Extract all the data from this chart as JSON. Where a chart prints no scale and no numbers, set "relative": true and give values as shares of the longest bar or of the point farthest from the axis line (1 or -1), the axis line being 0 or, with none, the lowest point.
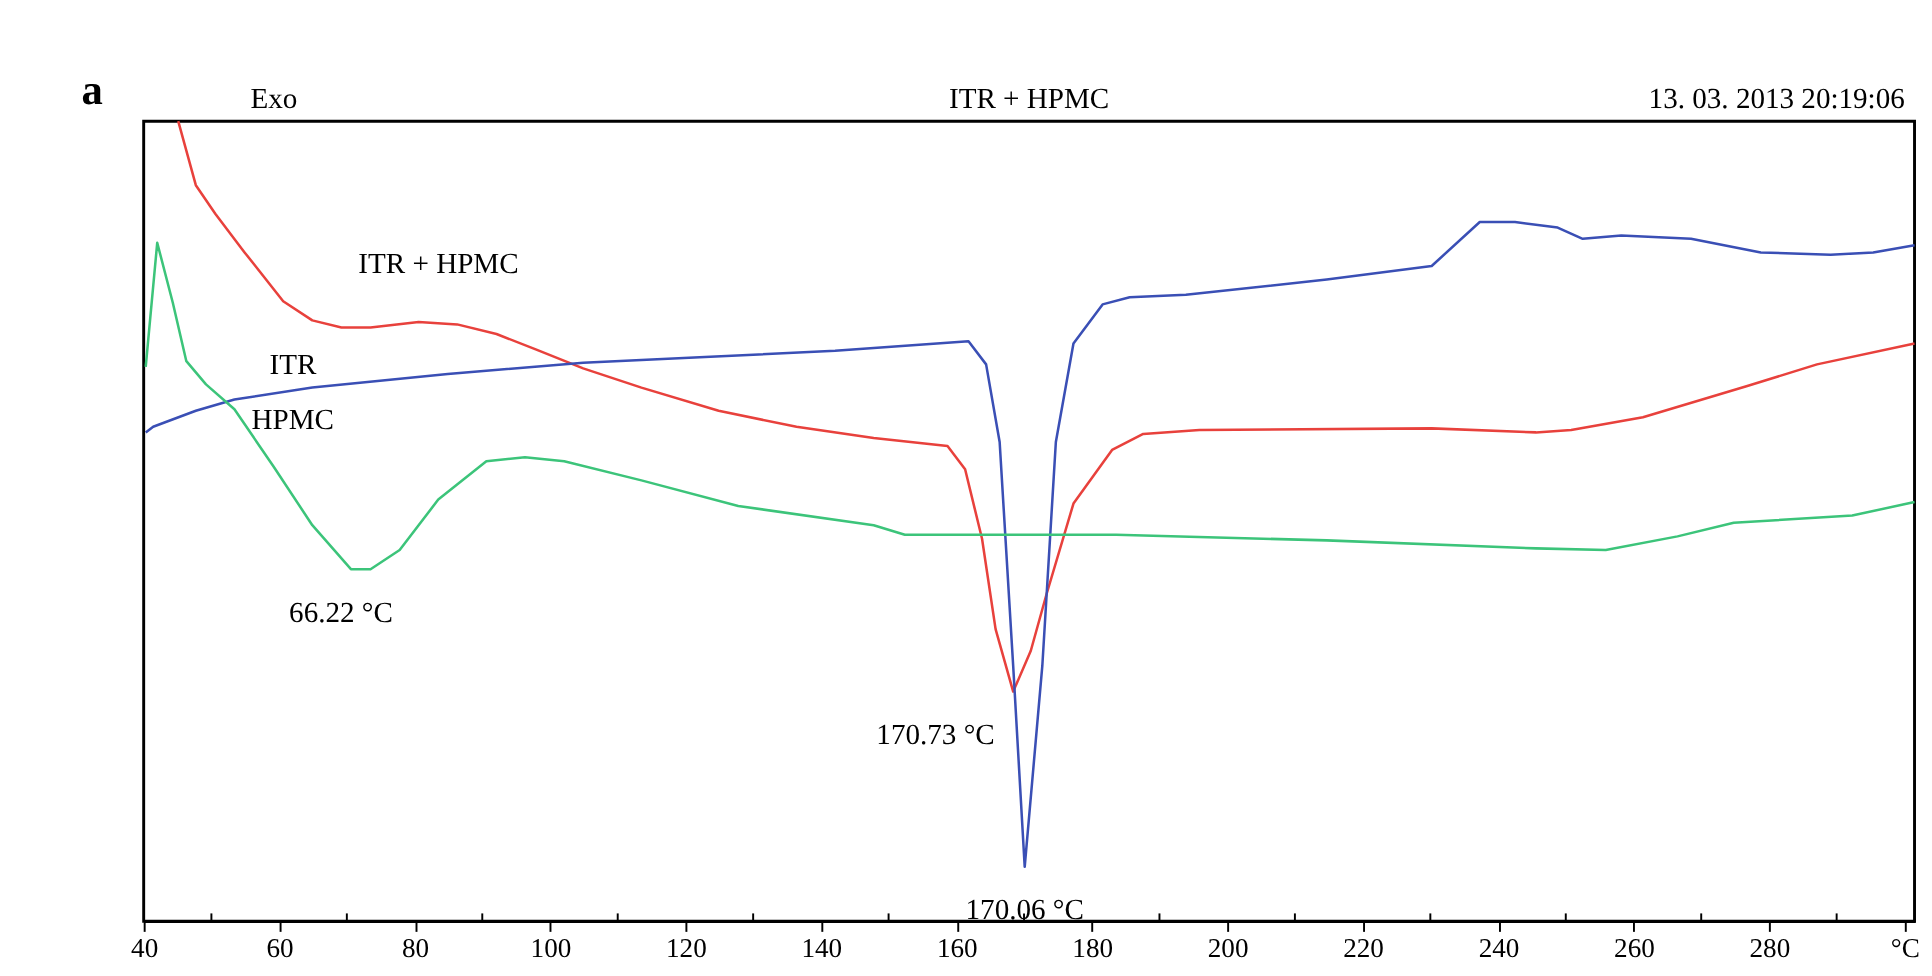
{
  "chart_data": {
    "type": "line",
    "title": "ITR + HPMC",
    "relative": true,
    "grid": false,
    "marker": "none",
    "line_style": "solid",
    "xlim": [
      40,
      301.5
    ],
    "xticks": [
      40,
      {
        "value": 50,
        "label": null
      },
      60,
      {
        "value": 70,
        "label": null
      },
      80,
      {
        "value": 90,
        "label": null
      },
      100,
      {
        "value": 110,
        "label": null
      },
      120,
      {
        "value": 130,
        "label": null
      },
      140,
      {
        "value": 150,
        "label": null
      },
      160,
      {
        "value": 170,
        "label": null
      },
      180,
      {
        "value": 190,
        "label": null
      },
      200,
      {
        "value": 210,
        "label": null
      },
      220,
      {
        "value": 230,
        "label": null
      },
      240,
      {
        "value": 250,
        "label": null
      },
      260,
      {
        "value": 270,
        "label": null
      },
      280,
      {
        "value": 290,
        "label": null
      },
      {
        "value": 300,
        "label": "°C"
      }
    ],
    "tick_labels": "x",
    "series": [
      {
        "name": "ITR + HPMC",
        "color": "#e8413c",
        "x": [
          45.1,
          47.7,
          50.6,
          54.9,
          60.6,
          64.9,
          69.2,
          73.5,
          80.6,
          86.3,
          92.1,
          97.8,
          104.9,
          113.5,
          124.9,
          136.4,
          147.8,
          158.7,
          161.3,
          163.8,
          165.8,
          168.4,
          171.0,
          173.3,
          177.3,
          183.0,
          187.6,
          195.9,
          230.2,
          245.6,
          250.8,
          261.4,
          276.8,
          287.1,
          301.5
        ],
        "values": [
          1.0,
          0.92,
          0.884,
          0.836,
          0.775,
          0.751,
          0.742,
          0.742,
          0.749,
          0.746,
          0.734,
          0.715,
          0.691,
          0.667,
          0.638,
          0.618,
          0.604,
          0.594,
          0.565,
          0.478,
          0.365,
          0.287,
          0.338,
          0.408,
          0.522,
          0.589,
          0.609,
          0.614,
          0.616,
          0.611,
          0.614,
          0.63,
          0.669,
          0.696,
          0.722
        ]
      },
      {
        "name": "ITR",
        "color": "#3a4fb5",
        "x": [
          40.3,
          41.4,
          47.7,
          53.4,
          64.9,
          84.9,
          104.9,
          122.1,
          142.1,
          161.8,
          164.4,
          166.4,
          168.4,
          170.1,
          172.7,
          174.7,
          177.3,
          181.6,
          185.6,
          193.9,
          214.7,
          230.2,
          237.3,
          242.5,
          248.8,
          252.5,
          258.2,
          268.5,
          278.8,
          289.1,
          295.4,
          301.5
        ],
        "values": [
          0.611,
          0.618,
          0.638,
          0.652,
          0.667,
          0.684,
          0.698,
          0.705,
          0.713,
          0.725,
          0.696,
          0.599,
          0.319,
          0.068,
          0.319,
          0.599,
          0.722,
          0.771,
          0.78,
          0.783,
          0.802,
          0.819,
          0.874,
          0.874,
          0.867,
          0.853,
          0.857,
          0.853,
          0.836,
          0.833,
          0.836,
          0.845
        ]
      },
      {
        "name": "HPMC",
        "color": "#3cc47a",
        "x": [
          40.3,
          42.0,
          44.3,
          46.3,
          49.2,
          53.4,
          59.2,
          64.9,
          70.6,
          73.5,
          77.8,
          83.5,
          90.6,
          96.3,
          102.1,
          113.5,
          127.8,
          147.8,
          152.4,
          183.6,
          214.7,
          245.6,
          255.9,
          266.5,
          274.8,
          292.3,
          301.5
        ],
        "values": [
          0.693,
          0.848,
          0.773,
          0.7,
          0.671,
          0.64,
          0.568,
          0.495,
          0.44,
          0.44,
          0.464,
          0.527,
          0.575,
          0.58,
          0.575,
          0.551,
          0.519,
          0.495,
          0.483,
          0.483,
          0.476,
          0.466,
          0.464,
          0.481,
          0.498,
          0.507,
          0.524
        ]
      }
    ],
    "annotations": [
      "a",
      "Exo",
      "13. 03. 2013 20:19:06",
      {
        "text": "66.22 °C",
        "x": 72.0,
        "y": 0.44
      },
      {
        "text": "170.73 °C",
        "x": 168.4,
        "y": 0.287
      },
      {
        "text": "170.06 °C",
        "x": 170.1,
        "y": 0.068
      }
    ]
  }
}
